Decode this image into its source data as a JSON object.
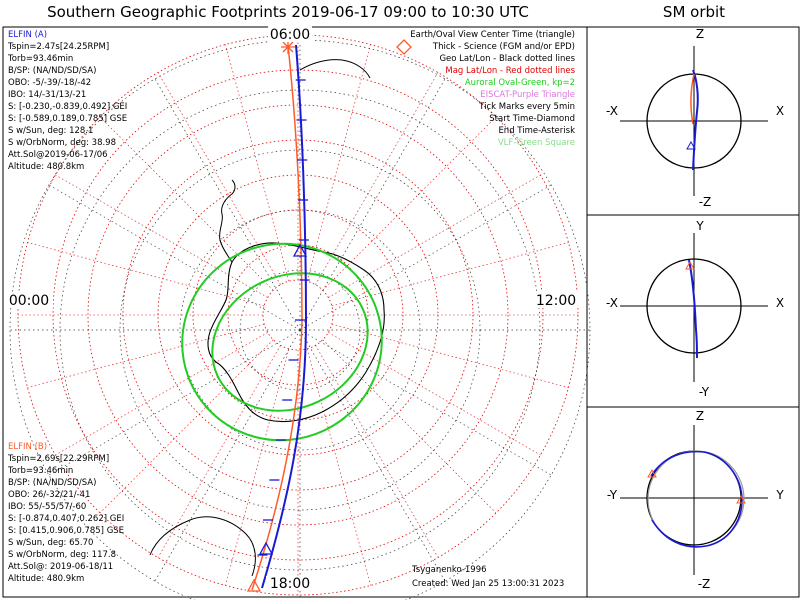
{
  "main_title": "Southern Geographic Footprints 2019-06-17 09:00 to 10:30 UTC",
  "sm_title": "SM orbit",
  "clock": {
    "top": "06:00",
    "left": "00:00",
    "right": "12:00",
    "bottom": "18:00"
  },
  "elfin_a": {
    "label": "ELFIN (A)",
    "color": "#1a1ad6",
    "lines": [
      "Tspin=2.47s[24.25RPM]",
      "Torb=93.46min",
      "B/SP: (NA/ND/SD/SA)",
      "OBO: -5/-39/-18/-42",
      "IBO: 14/-31/13/-21",
      "S: [-0.230,-0.839,0.492] GEI",
      "S: [-0.589,0.189,0.785] GSE",
      "S w/Sun, deg: 128.1",
      "S w/OrbNorm, deg: 38.98",
      "Att.Sol@2019-06-17/06",
      "Altitude: 480.8km"
    ]
  },
  "elfin_b": {
    "label": "ELFIN (B)",
    "color": "#ff5a2a",
    "lines": [
      "Tspin=2.69s[22.29RPM]",
      "Torb=93.46min",
      "B/SP: (NA/ND/SD/SA)",
      "OBO: 26/-32/21/-41",
      "IBO: 55/-55/57/-60",
      "S: [-0.874,0.407,0.262] GEI",
      "S: [0.415,0.906,0.785] GSE",
      "S w/Sun, deg: 65.70",
      "S w/OrbNorm, deg: 117.8",
      "Att.Sol@: 2019-06-18/11",
      "Altitude: 480.9km"
    ]
  },
  "legend": [
    {
      "text": "Earth/Oval View Center Time (triangle)",
      "color": "#000000"
    },
    {
      "text": "Thick - Science (FGM and/or EPD)",
      "color": "#000000"
    },
    {
      "text": "Geo Lat/Lon - Black dotted lines",
      "color": "#000000"
    },
    {
      "text": "Mag Lat/Lon - Red dotted lines",
      "color": "#e00000"
    },
    {
      "text": "Auroral Oval-Green, kp=2",
      "color": "#22cc22"
    },
    {
      "text": "EISCAT-Purple Triangle",
      "color": "#dd77dd"
    },
    {
      "text": "Tick Marks every 5min",
      "color": "#000000"
    },
    {
      "text": "Start Time-Diamond",
      "color": "#000000"
    },
    {
      "text": "End Time-Asterisk",
      "color": "#000000"
    },
    {
      "text": "VLF-Green Square",
      "color": "#88dd88"
    }
  ],
  "model": "Tsyganenko-1996",
  "created": "Created: Wed Jan 25 13:00:31 2023",
  "panels": {
    "p1": {
      "top": "Z",
      "bottom": "-Z",
      "left": "-X",
      "right": "X"
    },
    "p2": {
      "top": "Y",
      "bottom": "-Y",
      "left": "-X",
      "right": "X"
    },
    "p3": {
      "top": "Z",
      "bottom": "-Z",
      "left": "-Y",
      "right": "Y"
    }
  }
}
